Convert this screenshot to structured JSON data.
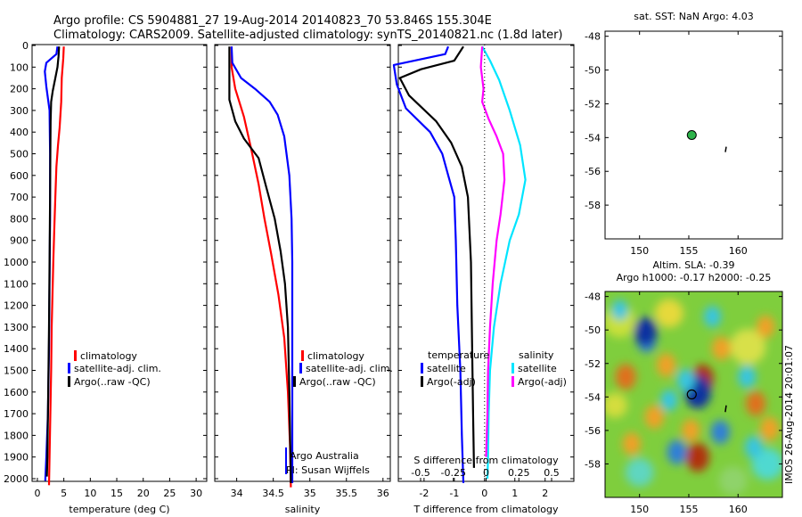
{
  "header": {
    "line1": "Argo profile: CS 5904881_27 19-Aug-2014 20140823_70 53.846S 155.304E",
    "line2": "Climatology: CARS2009. Satellite-adjusted climatology: synTS_20140821.nc (1.8d later)"
  },
  "colors": {
    "climatology": "#ff0000",
    "satellite": "#0000ff",
    "argo": "#000000",
    "satellite_diff_salinity": "#00e5ff",
    "argo_diff_salinity": "#ff00ff"
  },
  "depth_ticks": [
    "0",
    "100",
    "200",
    "300",
    "400",
    "500",
    "600",
    "700",
    "800",
    "900",
    "1000",
    "1100",
    "1200",
    "1300",
    "1400",
    "1500",
    "1600",
    "1700",
    "1800",
    "1900",
    "2000"
  ],
  "chart_data": [
    {
      "type": "line",
      "xlabel": "temperature (deg C)",
      "xlim": [
        -1,
        32
      ],
      "ylim": [
        0,
        2050
      ],
      "xticks": [
        "0",
        "5",
        "10",
        "15",
        "20",
        "25",
        "30"
      ],
      "legend": [
        "climatology",
        "satellite-adj. clim.",
        "Argo(..raw -QC)"
      ],
      "series": [
        {
          "name": "climatology",
          "color": "#ff0000",
          "points": [
            [
              5.0,
              5
            ],
            [
              4.9,
              60
            ],
            [
              4.6,
              150
            ],
            [
              4.5,
              260
            ],
            [
              4.2,
              380
            ],
            [
              3.9,
              460
            ],
            [
              3.6,
              560
            ],
            [
              3.4,
              700
            ],
            [
              3.2,
              850
            ],
            [
              3.0,
              1000
            ],
            [
              2.9,
              1100
            ],
            [
              2.7,
              1300
            ],
            [
              2.6,
              1500
            ],
            [
              2.45,
              1700
            ],
            [
              2.3,
              1900
            ],
            [
              2.2,
              2030
            ]
          ]
        },
        {
          "name": "satellite-adj. clim.",
          "color": "#0000ff",
          "points": [
            [
              3.8,
              5
            ],
            [
              3.6,
              40
            ],
            [
              1.7,
              80
            ],
            [
              1.4,
              120
            ],
            [
              1.7,
              190
            ],
            [
              2.3,
              300
            ],
            [
              2.4,
              500
            ],
            [
              2.4,
              800
            ],
            [
              2.3,
              1100
            ],
            [
              2.2,
              1400
            ],
            [
              2.0,
              1700
            ],
            [
              1.7,
              1900
            ],
            [
              1.5,
              2010
            ]
          ]
        },
        {
          "name": "Argo(..raw -QC)",
          "color": "#000000",
          "points": [
            [
              4.1,
              5
            ],
            [
              4.0,
              50
            ],
            [
              3.8,
              100
            ],
            [
              3.4,
              150
            ],
            [
              2.9,
              210
            ],
            [
              2.6,
              260
            ],
            [
              2.5,
              350
            ],
            [
              2.45,
              500
            ],
            [
              2.4,
              700
            ],
            [
              2.3,
              1000
            ],
            [
              2.2,
              1300
            ],
            [
              2.05,
              1600
            ],
            [
              1.95,
              1800
            ],
            [
              1.9,
              1900
            ],
            [
              1.8,
              1990
            ]
          ]
        }
      ]
    },
    {
      "type": "line",
      "xlabel": "salinity",
      "xlim": [
        33.7,
        36.1
      ],
      "ylim": [
        0,
        2050
      ],
      "xticks": [
        "34",
        "34.5",
        "35",
        "35.5",
        "36"
      ],
      "legend": [
        "climatology",
        "satellite-adj. clim.",
        "Argo(..raw -QC)"
      ],
      "annotations": [
        "Argo Australia",
        "PI: Susan Wijffels"
      ],
      "series": [
        {
          "name": "climatology",
          "color": "#ff0000",
          "points": [
            [
              33.93,
              5
            ],
            [
              33.93,
              100
            ],
            [
              33.98,
              200
            ],
            [
              34.1,
              330
            ],
            [
              34.2,
              480
            ],
            [
              34.3,
              640
            ],
            [
              34.38,
              800
            ],
            [
              34.47,
              960
            ],
            [
              34.57,
              1150
            ],
            [
              34.65,
              1350
            ],
            [
              34.7,
              1600
            ],
            [
              34.73,
              1850
            ],
            [
              34.74,
              2040
            ]
          ]
        },
        {
          "name": "satellite-adj. clim.",
          "color": "#0000ff",
          "points": [
            [
              33.93,
              5
            ],
            [
              33.94,
              80
            ],
            [
              34.06,
              150
            ],
            [
              34.25,
              200
            ],
            [
              34.45,
              260
            ],
            [
              34.56,
              320
            ],
            [
              34.65,
              420
            ],
            [
              34.72,
              600
            ],
            [
              34.75,
              800
            ],
            [
              34.76,
              1000
            ],
            [
              34.76,
              1300
            ],
            [
              34.76,
              1600
            ],
            [
              34.76,
              1900
            ],
            [
              34.76,
              2020
            ]
          ]
        },
        {
          "name": "Argo(..raw -QC)",
          "color": "#000000",
          "points": [
            [
              33.9,
              5
            ],
            [
              33.9,
              250
            ],
            [
              33.98,
              350
            ],
            [
              34.1,
              430
            ],
            [
              34.3,
              520
            ],
            [
              34.4,
              650
            ],
            [
              34.52,
              800
            ],
            [
              34.6,
              950
            ],
            [
              34.66,
              1100
            ],
            [
              34.7,
              1300
            ],
            [
              34.72,
              1600
            ],
            [
              34.74,
              2020
            ]
          ]
        }
      ]
    },
    {
      "type": "line",
      "xlabel": "T difference from climatology",
      "x2label": "S difference from climatology",
      "xlim": [
        -2.85,
        2.95
      ],
      "x2lim": [
        -0.67,
        0.67
      ],
      "ylim": [
        0,
        2050
      ],
      "xticks": [
        "-2",
        "-1",
        "0",
        "1",
        "2"
      ],
      "x2ticks": [
        "-0.5",
        "-0.25",
        "0",
        "0.25",
        "0.5"
      ],
      "legend": {
        "temperature": [
          "satellite",
          "Argo(-adj)"
        ],
        "salinity": [
          "satellite",
          "Argo(-adj)"
        ]
      },
      "series": [
        {
          "name": "temperature satellite",
          "color": "#0000ff",
          "unit": "T",
          "points": [
            [
              -1.2,
              5
            ],
            [
              -1.3,
              40
            ],
            [
              -3.0,
              90
            ],
            [
              -2.9,
              180
            ],
            [
              -2.6,
              290
            ],
            [
              -1.8,
              400
            ],
            [
              -1.4,
              500
            ],
            [
              -1.2,
              600
            ],
            [
              -1.0,
              700
            ],
            [
              -0.95,
              900
            ],
            [
              -0.9,
              1200
            ],
            [
              -0.8,
              1500
            ],
            [
              -0.75,
              1800
            ],
            [
              -0.7,
              2020
            ]
          ]
        },
        {
          "name": "temperature Argo(-adj)",
          "color": "#000000",
          "unit": "T",
          "points": [
            [
              -0.7,
              5
            ],
            [
              -1.0,
              70
            ],
            [
              -2.1,
              110
            ],
            [
              -2.8,
              150
            ],
            [
              -2.5,
              230
            ],
            [
              -1.6,
              350
            ],
            [
              -1.1,
              450
            ],
            [
              -0.75,
              560
            ],
            [
              -0.55,
              700
            ],
            [
              -0.45,
              1000
            ],
            [
              -0.42,
              1300
            ],
            [
              -0.38,
              1700
            ],
            [
              -0.35,
              1950
            ]
          ]
        },
        {
          "name": "salinity satellite",
          "color": "#00e5ff",
          "unit": "S",
          "points": [
            [
              -0.03,
              5
            ],
            [
              0.03,
              70
            ],
            [
              0.1,
              160
            ],
            [
              0.18,
              300
            ],
            [
              0.26,
              460
            ],
            [
              0.3,
              620
            ],
            [
              0.25,
              780
            ],
            [
              0.18,
              900
            ],
            [
              0.11,
              1100
            ],
            [
              0.06,
              1300
            ],
            [
              0.03,
              1500
            ],
            [
              0.02,
              1700
            ],
            [
              0.015,
              1900
            ],
            [
              0.01,
              2000
            ]
          ]
        },
        {
          "name": "salinity Argo(-adj)",
          "color": "#ff00ff",
          "unit": "S",
          "points": [
            [
              -0.03,
              5
            ],
            [
              -0.04,
              100
            ],
            [
              -0.02,
              200
            ],
            [
              -0.03,
              260
            ],
            [
              0.02,
              340
            ],
            [
              0.08,
              420
            ],
            [
              0.13,
              500
            ],
            [
              0.14,
              620
            ],
            [
              0.11,
              780
            ],
            [
              0.08,
              900
            ],
            [
              0.05,
              1100
            ],
            [
              0.03,
              1300
            ],
            [
              0.015,
              1500
            ],
            [
              0.01,
              1700
            ],
            [
              0.0,
              1900
            ]
          ]
        }
      ]
    },
    {
      "type": "scatter",
      "title": "sat. SST: NaN Argo: 4.03",
      "xlim": [
        146.5,
        164.5
      ],
      "ylim": [
        -60,
        -47.7
      ],
      "xticks": [
        "150",
        "155",
        "160"
      ],
      "yticks": [
        "-48",
        "-50",
        "-52",
        "-54",
        "-56",
        "-58"
      ],
      "points": [
        {
          "lon": 155.3,
          "lat": -53.85,
          "kind": "profile"
        },
        {
          "lon": 158.8,
          "lat": -54.7,
          "kind": "coast"
        }
      ]
    },
    {
      "type": "heatmap",
      "title": "Altim. SLA: -0.39",
      "subtitle": "Argo h1000: -0.17 h2000: -0.25",
      "side_label": "IMOS 26-Aug-2014 20:01:07",
      "xlim": [
        146.5,
        164.5
      ],
      "ylim": [
        -60,
        -47.7
      ],
      "xticks": [
        "150",
        "155",
        "160"
      ],
      "yticks": [
        "-48",
        "-50",
        "-52",
        "-54",
        "-56",
        "-58"
      ],
      "marker": {
        "lon": 155.3,
        "lat": -53.85
      },
      "features": [
        {
          "lon": 150.7,
          "lat": -50.6,
          "sla": -0.4
        },
        {
          "lon": 150.6,
          "lat": -50.1,
          "sla": -0.6
        },
        {
          "lon": 156.4,
          "lat": -52.9,
          "sla": 0.55
        },
        {
          "lon": 155.9,
          "lat": -53.7,
          "sla": -0.8
        },
        {
          "lon": 154.7,
          "lat": -53.0,
          "sla": -0.3
        },
        {
          "lon": 148.6,
          "lat": -52.8,
          "sla": 0.45
        },
        {
          "lon": 149.2,
          "lat": -56.8,
          "sla": 0.3
        },
        {
          "lon": 151.5,
          "lat": -55.2,
          "sla": 0.35
        },
        {
          "lon": 155.2,
          "lat": -56.0,
          "sla": 0.3
        },
        {
          "lon": 155.9,
          "lat": -57.6,
          "sla": 0.6
        },
        {
          "lon": 153.8,
          "lat": -57.3,
          "sla": -0.4
        },
        {
          "lon": 153.0,
          "lat": -54.2,
          "sla": -0.25
        },
        {
          "lon": 160.9,
          "lat": -52.8,
          "sla": -0.3
        },
        {
          "lon": 158.3,
          "lat": -51.1,
          "sla": 0.35
        },
        {
          "lon": 161.8,
          "lat": -54.4,
          "sla": 0.4
        },
        {
          "lon": 163.2,
          "lat": -55.9,
          "sla": 0.35
        },
        {
          "lon": 158.2,
          "lat": -56.1,
          "sla": -0.35
        },
        {
          "lon": 161.6,
          "lat": -57.0,
          "sla": -0.3
        },
        {
          "lon": 162.8,
          "lat": -49.8,
          "sla": 0.3
        },
        {
          "lon": 157.4,
          "lat": -49.2,
          "sla": -0.25
        },
        {
          "lon": 152.7,
          "lat": -52.1,
          "sla": 0.35
        },
        {
          "lon": 148.0,
          "lat": -48.8,
          "sla": -0.2
        }
      ]
    }
  ]
}
